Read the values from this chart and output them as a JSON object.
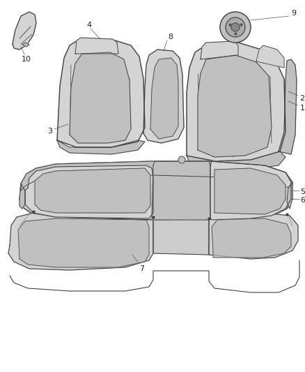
{
  "background_color": "#ffffff",
  "line_color": "#404040",
  "fill_light": "#d4d4d4",
  "fill_mid": "#c0c0c0",
  "fill_dark": "#aaaaaa",
  "fig_width": 4.38,
  "fig_height": 5.33,
  "dpi": 100
}
